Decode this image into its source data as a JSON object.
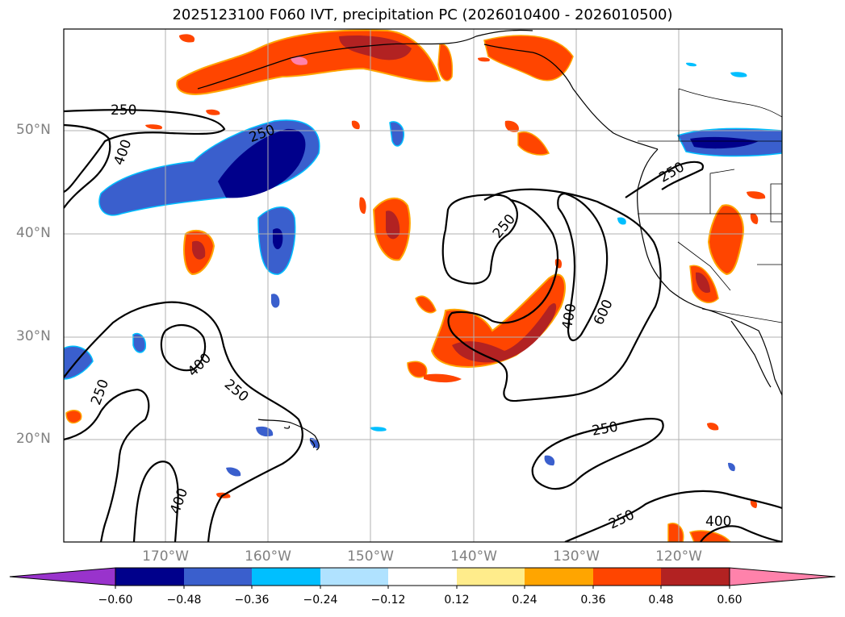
{
  "title": "2025123100 F060 IVT, precipitation PC (2026010400 - 2026010500)",
  "lat_labels": [
    "50°N",
    "40°N",
    "30°N",
    "20°N"
  ],
  "lon_labels": [
    "170°W",
    "160°W",
    "150°W",
    "140°W",
    "130°W",
    "120°W"
  ],
  "contour_labels": [
    "250",
    "250",
    "400",
    "250",
    "400",
    "250",
    "250",
    "400",
    "600",
    "250",
    "250",
    "400",
    "250",
    "400"
  ],
  "colorbar": {
    "ticks": [
      "−0.60",
      "−0.48",
      "−0.36",
      "−0.24",
      "−0.12",
      "0.12",
      "0.24",
      "0.36",
      "0.48",
      "0.60"
    ],
    "colors": [
      "#9933cc",
      "#00008b",
      "#3a5fcd",
      "#00bfff",
      "#b0e2ff",
      "#ffffff",
      "#ffec8b",
      "#ffa500",
      "#ff4500",
      "#b22222",
      "#ff82ab"
    ]
  }
}
